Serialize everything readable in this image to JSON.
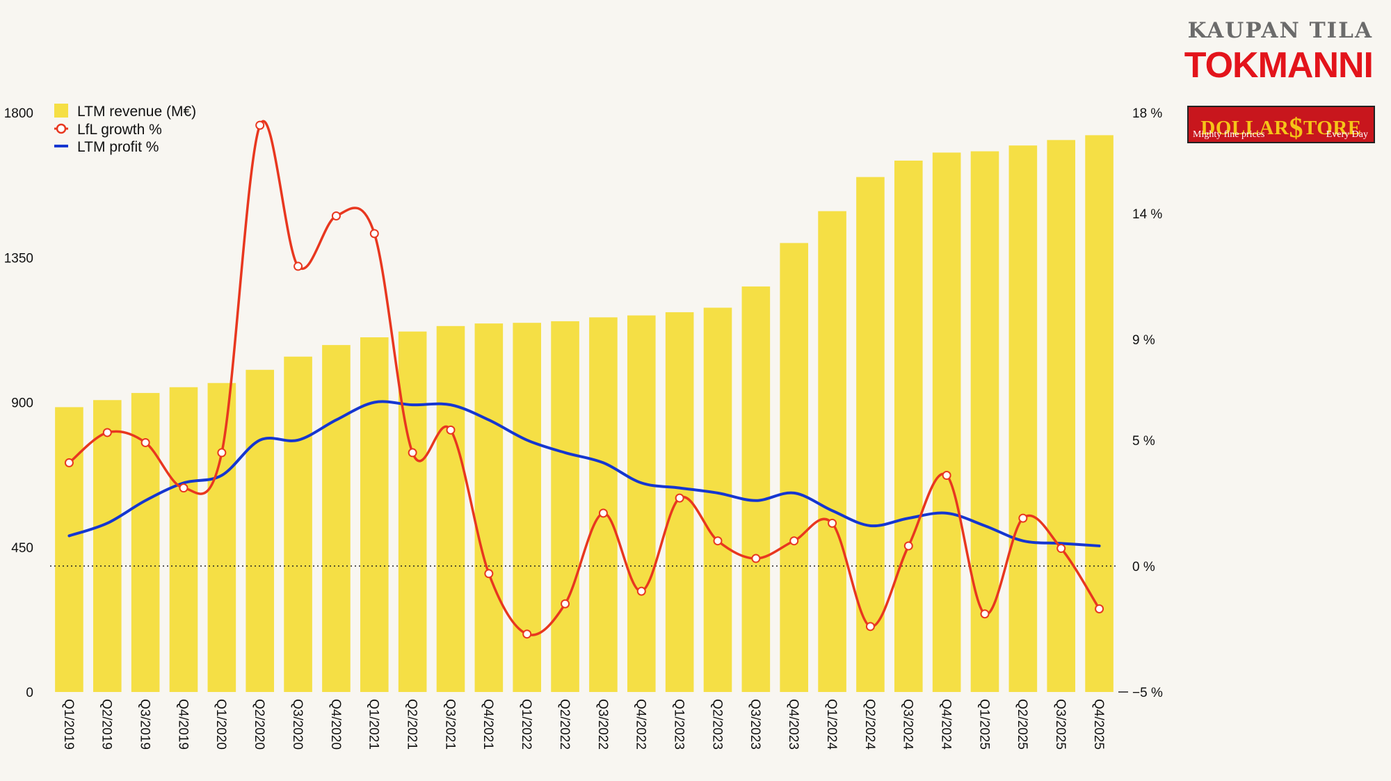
{
  "branding": {
    "title": "KAUPAN TILA",
    "logo_text": "TOKMANNI",
    "badge_text": "DOLLAR$TORE",
    "badge_word_left": "DOLLAR",
    "badge_symbol": "$",
    "badge_word_right": "TORE",
    "badge_tagline_left": "Mighty fine prices",
    "badge_tagline_right": "Every Day"
  },
  "colors": {
    "bar": "#f5df45",
    "lfl": "#e8371f",
    "profit": "#1536d0",
    "brand_red": "#e3141b"
  },
  "chart_data": {
    "type": "bar",
    "categories": [
      "Q1/2019",
      "Q2/2019",
      "Q3/2019",
      "Q4/2019",
      "Q1/2020",
      "Q2/2020",
      "Q3/2020",
      "Q4/2020",
      "Q1/2021",
      "Q2/2021",
      "Q3/2021",
      "Q4/2021",
      "Q1/2022",
      "Q2/2022",
      "Q3/2022",
      "Q4/2022",
      "Q1/2023",
      "Q2/2023",
      "Q3/2023",
      "Q4/2023",
      "Q1/2024",
      "Q2/2024",
      "Q3/2024",
      "Q4/2024",
      "Q1/2025",
      "Q2/2025",
      "Q3/2025",
      "Q4/2025"
    ],
    "series": [
      {
        "name": "LTM revenue (M€)",
        "type": "bar",
        "axis": "left",
        "values": [
          885,
          907,
          929,
          947,
          960,
          1001,
          1042,
          1078,
          1102,
          1120,
          1137,
          1145,
          1147,
          1152,
          1164,
          1170,
          1180,
          1194,
          1260,
          1395,
          1494,
          1600,
          1651,
          1676,
          1680,
          1698,
          1715,
          1730
        ]
      },
      {
        "name": "LfL growth %",
        "type": "line",
        "axis": "right",
        "markers": true,
        "values": [
          4.1,
          5.3,
          4.9,
          3.1,
          4.5,
          17.5,
          11.9,
          13.9,
          13.2,
          4.5,
          5.4,
          -0.3,
          -2.7,
          -1.5,
          2.1,
          -1.0,
          2.7,
          1.0,
          0.3,
          1.0,
          1.7,
          -2.4,
          0.8,
          3.6,
          -1.9,
          1.9,
          0.7,
          -1.7
        ]
      },
      {
        "name": "LTM profit %",
        "type": "line",
        "axis": "right",
        "markers": false,
        "values": [
          1.2,
          1.7,
          2.6,
          3.3,
          3.6,
          5.0,
          5.0,
          5.8,
          6.5,
          6.4,
          6.4,
          5.8,
          5.0,
          4.5,
          4.1,
          3.3,
          3.1,
          2.9,
          2.6,
          2.9,
          2.2,
          1.6,
          1.9,
          2.1,
          1.6,
          1.0,
          0.9,
          0.8
        ]
      }
    ],
    "left_axis": {
      "ylim": [
        0,
        1800
      ],
      "ticks": [
        0,
        450,
        900,
        1350,
        1800
      ],
      "labels": [
        "0",
        "450",
        "900",
        "1350",
        "1800"
      ]
    },
    "right_axis": {
      "ylim": [
        -5,
        18
      ],
      "ticks": [
        -5,
        0,
        5,
        9,
        14,
        18
      ],
      "labels": [
        "−5 %",
        "0 %",
        "5 %",
        "9 %",
        "14 %",
        "18 %"
      ]
    },
    "zero_line": {
      "axis": "right",
      "value": 0,
      "style": "dotted"
    },
    "legend": {
      "position": "top-left",
      "entries": [
        "LTM revenue (M€)",
        "LfL growth %",
        "LTM profit %"
      ]
    },
    "title": "",
    "xlabel": "",
    "ylabel": "",
    "grid": false
  }
}
